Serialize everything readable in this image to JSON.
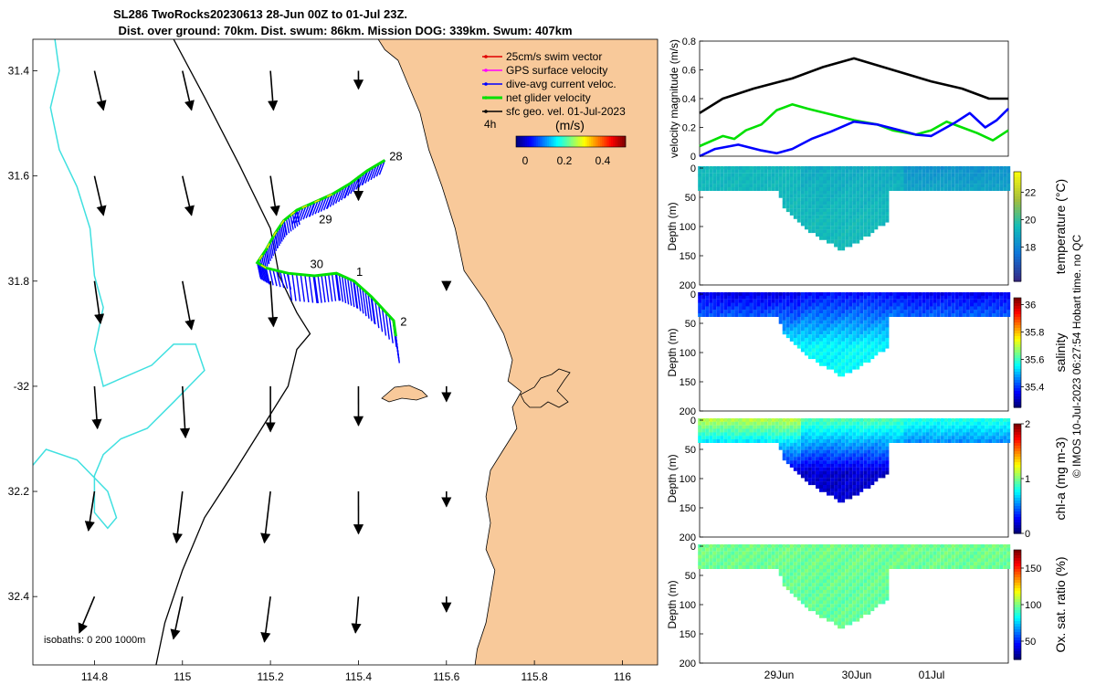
{
  "header": {
    "title_line1": "SL286 TwoRocks20230613 28-Jun 00Z to 01-Jul 23Z.",
    "title_line2": "Dist. over ground: 70km. Dist. swum: 86km. Mission DOG: 339km. Swum: 407km"
  },
  "footer": {
    "credit": "© IMOS 10-Jul-2023 06:27:54 Hobart time. no QC"
  },
  "colors": {
    "land": "#f8c99a",
    "coast": "#000000",
    "isobath_deep": "#40e0e0",
    "net_velocity": "#00e000",
    "current": "#0000ff",
    "swim": "#e00000",
    "gps": "#ff00ff",
    "geo": "#000000"
  },
  "chart_data": [
    {
      "id": "map",
      "type": "scatter",
      "title": "SL286 TwoRocks20230613 28-Jun 00Z to 01-Jul 23Z.",
      "xlim": [
        114.66,
        116.08
      ],
      "ylim": [
        -32.53,
        -31.34
      ],
      "xticks": [
        114.8,
        115,
        115.2,
        115.4,
        115.6,
        115.8,
        116
      ],
      "xtick_labels": [
        "114.8",
        "115",
        "115.2",
        "115.4",
        "115.6",
        "115.8",
        "116"
      ],
      "yticks": [
        -31.4,
        -31.6,
        -31.8,
        -32,
        -32.2,
        -32.4
      ],
      "ytick_labels": [
        "31.4",
        "31.6",
        "31.8",
        "-32",
        "32.2",
        "32.4"
      ],
      "legend": {
        "items": [
          {
            "label": "25cm/s swim vector",
            "color": "#e00000"
          },
          {
            "label": "GPS surface velocity",
            "color": "#ff00ff"
          },
          {
            "label": "dive-avg current veloc.",
            "color": "#0000ff"
          },
          {
            "label": "net glider velocity",
            "color": "#00e000"
          },
          {
            "label": "sfc geo. vel. 01-Jul-2023",
            "color": "#000000"
          }
        ],
        "time_label": "4h",
        "colorbar_title": "(m/s)",
        "colorbar_ticks": [
          "0",
          "0.2",
          "0.4"
        ]
      },
      "isobath_label": "isobaths: 0   200  1000m",
      "track": [
        {
          "lon": 115.46,
          "lat": -31.57
        },
        {
          "lon": 115.42,
          "lat": -31.59
        },
        {
          "lon": 115.38,
          "lat": -31.615
        },
        {
          "lon": 115.34,
          "lat": -31.635
        },
        {
          "lon": 115.3,
          "lat": -31.65
        },
        {
          "lon": 115.26,
          "lat": -31.665
        },
        {
          "lon": 115.23,
          "lat": -31.685
        },
        {
          "lon": 115.21,
          "lat": -31.71
        },
        {
          "lon": 115.19,
          "lat": -31.74
        },
        {
          "lon": 115.17,
          "lat": -31.765
        },
        {
          "lon": 115.19,
          "lat": -31.775
        },
        {
          "lon": 115.24,
          "lat": -31.785
        },
        {
          "lon": 115.3,
          "lat": -31.79
        },
        {
          "lon": 115.35,
          "lat": -31.785
        },
        {
          "lon": 115.39,
          "lat": -31.8
        },
        {
          "lon": 115.43,
          "lat": -31.83
        },
        {
          "lon": 115.48,
          "lat": -31.875
        },
        {
          "lon": 115.485,
          "lat": -31.905
        }
      ],
      "day_labels": [
        {
          "text": "28",
          "lon": 115.47,
          "lat": -31.57
        },
        {
          "text": "29",
          "lon": 115.31,
          "lat": -31.69
        },
        {
          "text": "30",
          "lon": 115.29,
          "lat": -31.775
        },
        {
          "text": "1",
          "lon": 115.395,
          "lat": -31.79
        },
        {
          "text": "2",
          "lon": 115.495,
          "lat": -31.885
        }
      ],
      "geo_vectors": [
        {
          "lon": 114.8,
          "lat": -31.4,
          "u": 0.03,
          "v": -0.13
        },
        {
          "lon": 115.0,
          "lat": -31.4,
          "u": 0.03,
          "v": -0.13
        },
        {
          "lon": 115.2,
          "lat": -31.4,
          "u": 0.01,
          "v": -0.13
        },
        {
          "lon": 115.4,
          "lat": -31.4,
          "u": 0.0,
          "v": -0.06
        },
        {
          "lon": 114.8,
          "lat": -31.6,
          "u": 0.03,
          "v": -0.13
        },
        {
          "lon": 115.0,
          "lat": -31.6,
          "u": 0.03,
          "v": -0.13
        },
        {
          "lon": 115.2,
          "lat": -31.6,
          "u": 0.02,
          "v": -0.13
        },
        {
          "lon": 115.4,
          "lat": -31.6,
          "u": 0.0,
          "v": -0.08
        },
        {
          "lon": 114.8,
          "lat": -31.8,
          "u": 0.02,
          "v": -0.14
        },
        {
          "lon": 115.0,
          "lat": -31.8,
          "u": 0.03,
          "v": -0.16
        },
        {
          "lon": 115.2,
          "lat": -31.8,
          "u": 0.01,
          "v": -0.15
        },
        {
          "lon": 115.6,
          "lat": -31.8,
          "u": 0.0,
          "v": -0.03
        },
        {
          "lon": 114.8,
          "lat": -32.0,
          "u": 0.01,
          "v": -0.14
        },
        {
          "lon": 115.0,
          "lat": -32.0,
          "u": 0.01,
          "v": -0.17
        },
        {
          "lon": 115.2,
          "lat": -32.0,
          "u": 0.0,
          "v": -0.15
        },
        {
          "lon": 115.4,
          "lat": -32.0,
          "u": 0.0,
          "v": -0.13
        },
        {
          "lon": 115.6,
          "lat": -32.0,
          "u": 0.0,
          "v": -0.05
        },
        {
          "lon": 114.8,
          "lat": -32.2,
          "u": -0.02,
          "v": -0.13
        },
        {
          "lon": 115.0,
          "lat": -32.2,
          "u": -0.02,
          "v": -0.17
        },
        {
          "lon": 115.2,
          "lat": -32.2,
          "u": -0.02,
          "v": -0.17
        },
        {
          "lon": 115.4,
          "lat": -32.2,
          "u": 0.0,
          "v": -0.14
        },
        {
          "lon": 115.6,
          "lat": -32.2,
          "u": 0.0,
          "v": -0.05
        },
        {
          "lon": 114.8,
          "lat": -32.4,
          "u": -0.05,
          "v": -0.12
        },
        {
          "lon": 115.0,
          "lat": -32.4,
          "u": -0.03,
          "v": -0.14
        },
        {
          "lon": 115.2,
          "lat": -32.4,
          "u": -0.02,
          "v": -0.15
        },
        {
          "lon": 115.4,
          "lat": -32.4,
          "u": -0.01,
          "v": -0.12
        },
        {
          "lon": 115.6,
          "lat": -32.4,
          "u": 0.0,
          "v": -0.05
        }
      ],
      "coastline": [
        {
          "lon": 115.445,
          "lat": -31.34
        },
        {
          "lon": 115.46,
          "lat": -31.36
        },
        {
          "lon": 115.49,
          "lat": -31.38
        },
        {
          "lon": 115.51,
          "lat": -31.42
        },
        {
          "lon": 115.54,
          "lat": -31.48
        },
        {
          "lon": 115.56,
          "lat": -31.55
        },
        {
          "lon": 115.59,
          "lat": -31.62
        },
        {
          "lon": 115.62,
          "lat": -31.7
        },
        {
          "lon": 115.64,
          "lat": -31.78
        },
        {
          "lon": 115.69,
          "lat": -31.84
        },
        {
          "lon": 115.73,
          "lat": -31.9
        },
        {
          "lon": 115.75,
          "lat": -31.95
        },
        {
          "lon": 115.74,
          "lat": -31.99
        },
        {
          "lon": 115.77,
          "lat": -32.01
        },
        {
          "lon": 115.75,
          "lat": -32.04
        },
        {
          "lon": 115.76,
          "lat": -32.08
        },
        {
          "lon": 115.73,
          "lat": -32.12
        },
        {
          "lon": 115.7,
          "lat": -32.16
        },
        {
          "lon": 115.69,
          "lat": -32.21
        },
        {
          "lon": 115.7,
          "lat": -32.26
        },
        {
          "lon": 115.69,
          "lat": -32.31
        },
        {
          "lon": 115.71,
          "lat": -32.35
        },
        {
          "lon": 115.7,
          "lat": -32.4
        },
        {
          "lon": 115.69,
          "lat": -32.45
        },
        {
          "lon": 115.67,
          "lat": -32.5
        },
        {
          "lon": 115.665,
          "lat": -32.53
        }
      ],
      "isobath_200": [
        {
          "lon": 114.98,
          "lat": -31.34
        },
        {
          "lon": 115.05,
          "lat": -31.45
        },
        {
          "lon": 115.13,
          "lat": -31.58
        },
        {
          "lon": 115.2,
          "lat": -31.7
        },
        {
          "lon": 115.22,
          "lat": -31.79
        },
        {
          "lon": 115.26,
          "lat": -31.86
        },
        {
          "lon": 115.29,
          "lat": -31.9
        },
        {
          "lon": 115.26,
          "lat": -31.93
        },
        {
          "lon": 115.24,
          "lat": -32.0
        },
        {
          "lon": 115.18,
          "lat": -32.08
        },
        {
          "lon": 115.12,
          "lat": -32.16
        },
        {
          "lon": 115.05,
          "lat": -32.25
        },
        {
          "lon": 115.0,
          "lat": -32.35
        },
        {
          "lon": 114.96,
          "lat": -32.45
        },
        {
          "lon": 114.94,
          "lat": -32.53
        }
      ],
      "isobath_1000": [
        {
          "lon": 114.71,
          "lat": -31.34
        },
        {
          "lon": 114.72,
          "lat": -31.4
        },
        {
          "lon": 114.7,
          "lat": -31.47
        },
        {
          "lon": 114.72,
          "lat": -31.55
        },
        {
          "lon": 114.76,
          "lat": -31.62
        },
        {
          "lon": 114.79,
          "lat": -31.7
        },
        {
          "lon": 114.8,
          "lat": -31.79
        },
        {
          "lon": 114.82,
          "lat": -31.85
        },
        {
          "lon": 114.8,
          "lat": -31.93
        },
        {
          "lon": 114.82,
          "lat": -32.0
        },
        {
          "lon": 114.93,
          "lat": -31.96
        },
        {
          "lon": 114.98,
          "lat": -31.92
        },
        {
          "lon": 115.03,
          "lat": -31.92
        },
        {
          "lon": 115.05,
          "lat": -31.97
        },
        {
          "lon": 114.98,
          "lat": -32.03
        },
        {
          "lon": 114.92,
          "lat": -32.08
        },
        {
          "lon": 114.86,
          "lat": -32.1
        },
        {
          "lon": 114.82,
          "lat": -32.13
        },
        {
          "lon": 114.8,
          "lat": -32.17
        },
        {
          "lon": 114.8,
          "lat": -32.24
        },
        {
          "lon": 114.83,
          "lat": -32.27
        },
        {
          "lon": 114.85,
          "lat": -32.25
        },
        {
          "lon": 114.83,
          "lat": -32.2
        },
        {
          "lon": 114.76,
          "lat": -32.14
        },
        {
          "lon": 114.69,
          "lat": -32.12
        },
        {
          "lon": 114.66,
          "lat": -32.15
        }
      ]
    },
    {
      "id": "velocity",
      "type": "line",
      "ylabel": "velocity magnitude (m/s)",
      "xlim": [
        0,
        4
      ],
      "ylim": [
        0,
        0.8
      ],
      "yticks": [
        0,
        0.2,
        0.4,
        0.6,
        0.8
      ],
      "ytick_labels": [
        "0",
        "0.2",
        "0.4",
        "0.6",
        "0.8"
      ],
      "series": [
        {
          "name": "sfc geo. vel.",
          "color": "#000000",
          "x": [
            0,
            0.3,
            0.7,
            1.2,
            1.6,
            2.0,
            2.5,
            3.0,
            3.4,
            3.75,
            4.0
          ],
          "y": [
            0.3,
            0.4,
            0.47,
            0.54,
            0.62,
            0.68,
            0.6,
            0.52,
            0.47,
            0.4,
            0.4
          ]
        },
        {
          "name": "net glider velocity",
          "color": "#00e000",
          "x": [
            0,
            0.3,
            0.45,
            0.6,
            0.8,
            1.0,
            1.2,
            1.4,
            1.7,
            2.0,
            2.3,
            2.5,
            2.8,
            3.0,
            3.2,
            3.4,
            3.6,
            3.8,
            4.0
          ],
          "y": [
            0.07,
            0.14,
            0.12,
            0.18,
            0.22,
            0.32,
            0.36,
            0.33,
            0.29,
            0.25,
            0.22,
            0.18,
            0.15,
            0.18,
            0.24,
            0.2,
            0.16,
            0.11,
            0.18
          ]
        },
        {
          "name": "dive-avg current",
          "color": "#0000ff",
          "x": [
            0,
            0.2,
            0.5,
            0.8,
            1.0,
            1.2,
            1.45,
            1.7,
            2.0,
            2.3,
            2.6,
            2.8,
            3.0,
            3.3,
            3.5,
            3.7,
            3.85,
            4.0
          ],
          "y": [
            0.0,
            0.05,
            0.08,
            0.04,
            0.02,
            0.05,
            0.12,
            0.17,
            0.24,
            0.22,
            0.18,
            0.15,
            0.14,
            0.23,
            0.3,
            0.2,
            0.25,
            0.33
          ]
        }
      ]
    },
    {
      "id": "temperature",
      "type": "heatmap",
      "ylabel": "Depth (m)",
      "colorbar_label": "temperature (°C)",
      "ylim": [
        200,
        0
      ],
      "yticks": [
        0,
        50,
        100,
        150,
        200
      ],
      "ytick_labels": [
        "0",
        "50",
        "100",
        "150",
        "200"
      ],
      "clim": [
        15.5,
        23.5
      ],
      "colorbar_ticks": [
        18,
        20,
        22
      ],
      "colorbar_tick_labels": [
        "18",
        "20",
        "22"
      ],
      "surface_value": [
        19.3,
        19.0,
        18.3
      ],
      "deep_value": 19.4
    },
    {
      "id": "salinity",
      "type": "heatmap",
      "ylabel": "Depth (m)",
      "colorbar_label": "salinity",
      "ylim": [
        200,
        0
      ],
      "yticks": [
        0,
        50,
        100,
        150,
        200
      ],
      "ytick_labels": [
        "0",
        "50",
        "100",
        "150",
        "200"
      ],
      "clim": [
        35.25,
        36.05
      ],
      "colorbar_ticks": [
        35.4,
        35.6,
        35.8,
        36
      ],
      "colorbar_tick_labels": [
        "35.4",
        "35.6",
        "35.8",
        "36"
      ],
      "surface_value": [
        35.33,
        35.36,
        35.34
      ],
      "deep_value": 35.55
    },
    {
      "id": "chla",
      "type": "heatmap",
      "ylabel": "Depth (m)",
      "colorbar_label": "chl-a (mg m-3)",
      "ylim": [
        200,
        0
      ],
      "yticks": [
        0,
        50,
        100,
        150,
        200
      ],
      "ytick_labels": [
        "0",
        "50",
        "100",
        "150",
        "200"
      ],
      "clim": [
        0,
        2
      ],
      "colorbar_ticks": [
        0,
        1,
        2
      ],
      "colorbar_tick_labels": [
        "0",
        "1",
        "2"
      ],
      "surface_value": [
        1.1,
        0.9,
        0.8
      ],
      "deep_value": 0.15
    },
    {
      "id": "oxygen",
      "type": "heatmap",
      "ylabel": "Depth (m)",
      "colorbar_label": "Ox. sat. ratio (%)",
      "ylim": [
        200,
        0
      ],
      "yticks": [
        0,
        50,
        100,
        150,
        200
      ],
      "ytick_labels": [
        "0",
        "50",
        "100",
        "150",
        "200"
      ],
      "clim": [
        25,
        175
      ],
      "colorbar_ticks": [
        50,
        100,
        150
      ],
      "colorbar_tick_labels": [
        "50",
        "100",
        "150"
      ],
      "surface_value": [
        98,
        98,
        98
      ],
      "deep_value": 96,
      "xticks": [
        1,
        2,
        3
      ],
      "xtick_labels": [
        "29Jun",
        "30Jun",
        "01Jul"
      ]
    }
  ]
}
